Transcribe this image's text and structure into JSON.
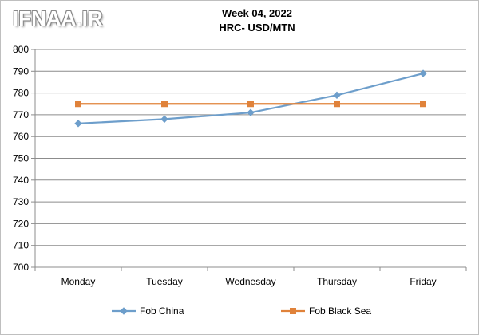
{
  "watermark": "IFNAA.IR",
  "chart_data": {
    "type": "line",
    "title": "Week 04, 2022",
    "subtitle": "HRC- USD/MTN",
    "categories": [
      "Monday",
      "Tuesday",
      "Wednesday",
      "Thursday",
      "Friday"
    ],
    "series": [
      {
        "name": "Fob China",
        "values": [
          766,
          768,
          771,
          779,
          789
        ],
        "color": "#6d9ecb",
        "marker": "diamond"
      },
      {
        "name": "Fob Black Sea",
        "values": [
          775,
          775,
          775,
          775,
          775
        ],
        "color": "#e0823a",
        "marker": "square"
      }
    ],
    "ylim": [
      700,
      800
    ],
    "yticks": [
      700,
      710,
      720,
      730,
      740,
      750,
      760,
      770,
      780,
      790,
      800
    ],
    "grid": true,
    "legend": "bottom"
  }
}
